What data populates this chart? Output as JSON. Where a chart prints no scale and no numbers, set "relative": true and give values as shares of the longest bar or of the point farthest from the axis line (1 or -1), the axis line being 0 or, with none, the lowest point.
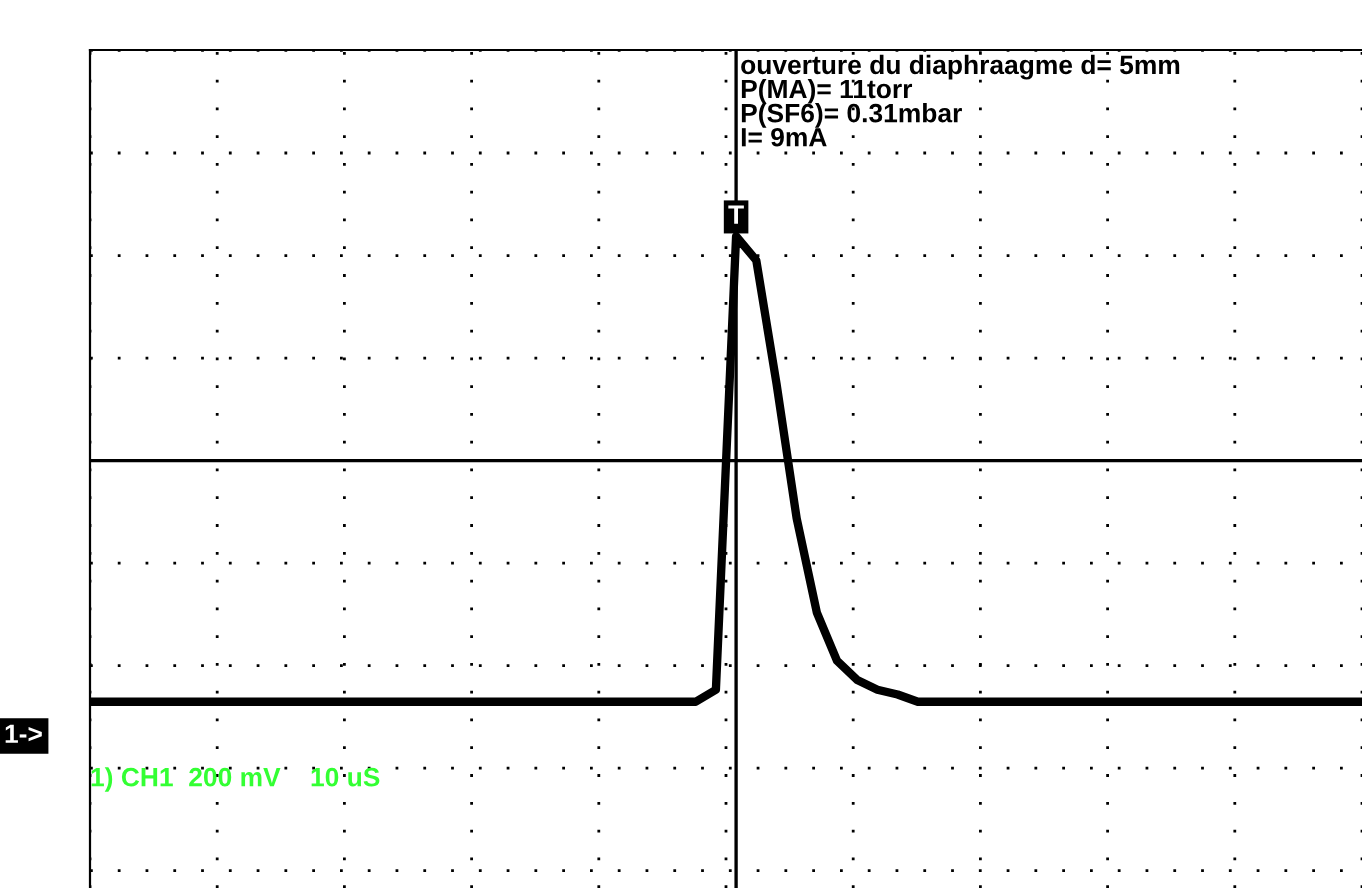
{
  "chart_data": {
    "type": "line",
    "relative": true,
    "color": "#000000",
    "grid": true,
    "categories": [
      null,
      null,
      null,
      null,
      null,
      null,
      null,
      null,
      null,
      null,
      null,
      null,
      null,
      null,
      null,
      null,
      null,
      null,
      null,
      null,
      null,
      null,
      null,
      null,
      null,
      null,
      null,
      null,
      null,
      null,
      null,
      null,
      null,
      null,
      null,
      null,
      null,
      null,
      null,
      null,
      null,
      null,
      null,
      null,
      null,
      null,
      null,
      null,
      null,
      null,
      null,
      null,
      null,
      null,
      null,
      null,
      null,
      null,
      null,
      null,
      null,
      null,
      null,
      null
    ],
    "values": [
      -1,
      -1,
      -1,
      -1,
      -1,
      -1,
      -1,
      -1,
      -1,
      -1,
      -1,
      -1,
      -1,
      -1,
      -1,
      -1,
      -1,
      -1,
      -1,
      -1,
      -1,
      -1,
      -1,
      -1,
      -1,
      -1,
      -1,
      -1,
      -1,
      -1,
      -1,
      -0.95,
      0.93,
      0.83,
      0.32,
      -0.24,
      -0.63,
      -0.83,
      -0.91,
      -0.95,
      -0.97,
      -1,
      -1,
      -1,
      -1,
      -1,
      -1,
      -1,
      -1,
      -1,
      -1,
      -1,
      -1,
      -1,
      -1,
      -1,
      -1,
      -1,
      -1,
      -1,
      -1,
      -1,
      -1,
      -1
    ],
    "annotations": [
      "ouverture du diaphraagme d= 5mm",
      "P(MA)= 11torr",
      "P(SF6)= 0.31mbar",
      "I= 9mA",
      "1) CH1  200 mV    10 uS",
      "1->",
      "T"
    ]
  }
}
